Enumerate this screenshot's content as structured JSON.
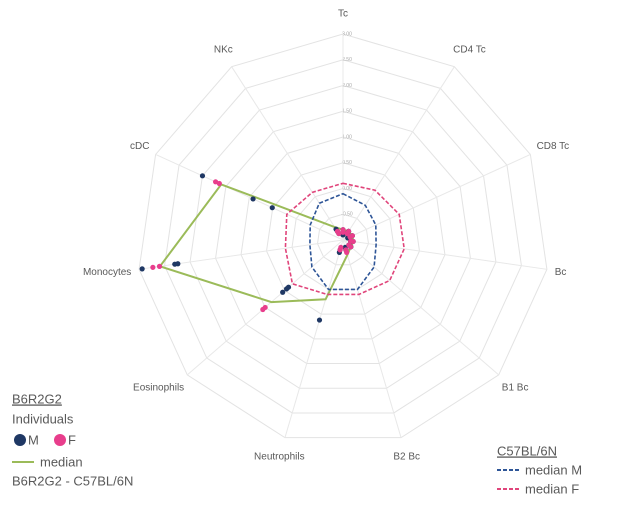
{
  "chart_data": {
    "type": "radar",
    "categories": [
      "Tc",
      "CD4 Tc",
      "CD8 Tc",
      "Bc",
      "B1 Bc",
      "B2 Bc",
      "Neutrophils",
      "Eosinophils",
      "Monocytes",
      "cDC",
      "NKc"
    ],
    "rlim": [
      -1,
      3
    ],
    "rticks": [
      {
        "value": -1,
        "label": "-1.00"
      },
      {
        "value": -0.5,
        "label": "-0.50"
      },
      {
        "value": 0,
        "label": "0.00"
      },
      {
        "value": 0.5,
        "label": "0.50"
      },
      {
        "value": 1,
        "label": "1.00"
      },
      {
        "value": 1.5,
        "label": "1.50"
      },
      {
        "value": 2,
        "label": "2.00"
      },
      {
        "value": 2.5,
        "label": "2.50"
      },
      {
        "value": 3,
        "label": "3.00"
      }
    ],
    "grid": true,
    "individuals": {
      "group_title": "B6R2G2",
      "title": "Individuals",
      "groups": [
        {
          "name": "M",
          "color": "#1f3864",
          "points": [
            [
              -0.85,
              -0.8,
              -0.85,
              -0.85,
              -0.85,
              -0.8,
              0.62,
              0.55,
              2.94,
              2.0,
              -0.8
            ],
            [
              -0.8,
              -0.85,
              -0.8,
              -0.8,
              -0.8,
              -0.85,
              -0.75,
              0.45,
              2.3,
              0.92,
              -0.75
            ],
            [
              -0.9,
              -0.8,
              -0.9,
              -0.85,
              -0.8,
              -0.8,
              -0.8,
              0.4,
              2.24,
              0.51,
              -0.85
            ]
          ]
        },
        {
          "name": "F",
          "color": "#e83e8c",
          "points": [
            [
              -0.8,
              -0.85,
              -0.85,
              -0.8,
              -0.85,
              -0.75,
              -0.8,
              1.06,
              2.73,
              1.72,
              -0.8
            ],
            [
              -0.85,
              -0.8,
              -0.8,
              -0.85,
              -0.8,
              -0.8,
              -0.85,
              1.0,
              2.6,
              1.64,
              -0.85
            ]
          ]
        }
      ]
    },
    "series": [
      {
        "name": "median",
        "subtitle": "B6R2G2 - C57BL/6N",
        "color": "#9bbb59",
        "dash": false,
        "values": [
          -0.8,
          -0.8,
          -0.8,
          -0.8,
          -0.8,
          -0.7,
          0.2,
          0.84,
          2.59,
          1.6,
          -0.7
        ]
      },
      {
        "name": "median M",
        "color": "#2e5597",
        "dash": true,
        "values": [
          -0.1,
          -0.2,
          -0.3,
          -0.35,
          -0.2,
          0.0,
          0.0,
          -0.2,
          -0.35,
          -0.3,
          -0.15
        ]
      },
      {
        "name": "median F",
        "color": "#e0457b",
        "dash": true,
        "values": [
          0.1,
          0.15,
          0.2,
          0.2,
          0.2,
          0.1,
          0.1,
          0.3,
          0.13,
          0.2,
          0.1
        ]
      }
    ],
    "reference_title": "C57BL/6N"
  }
}
